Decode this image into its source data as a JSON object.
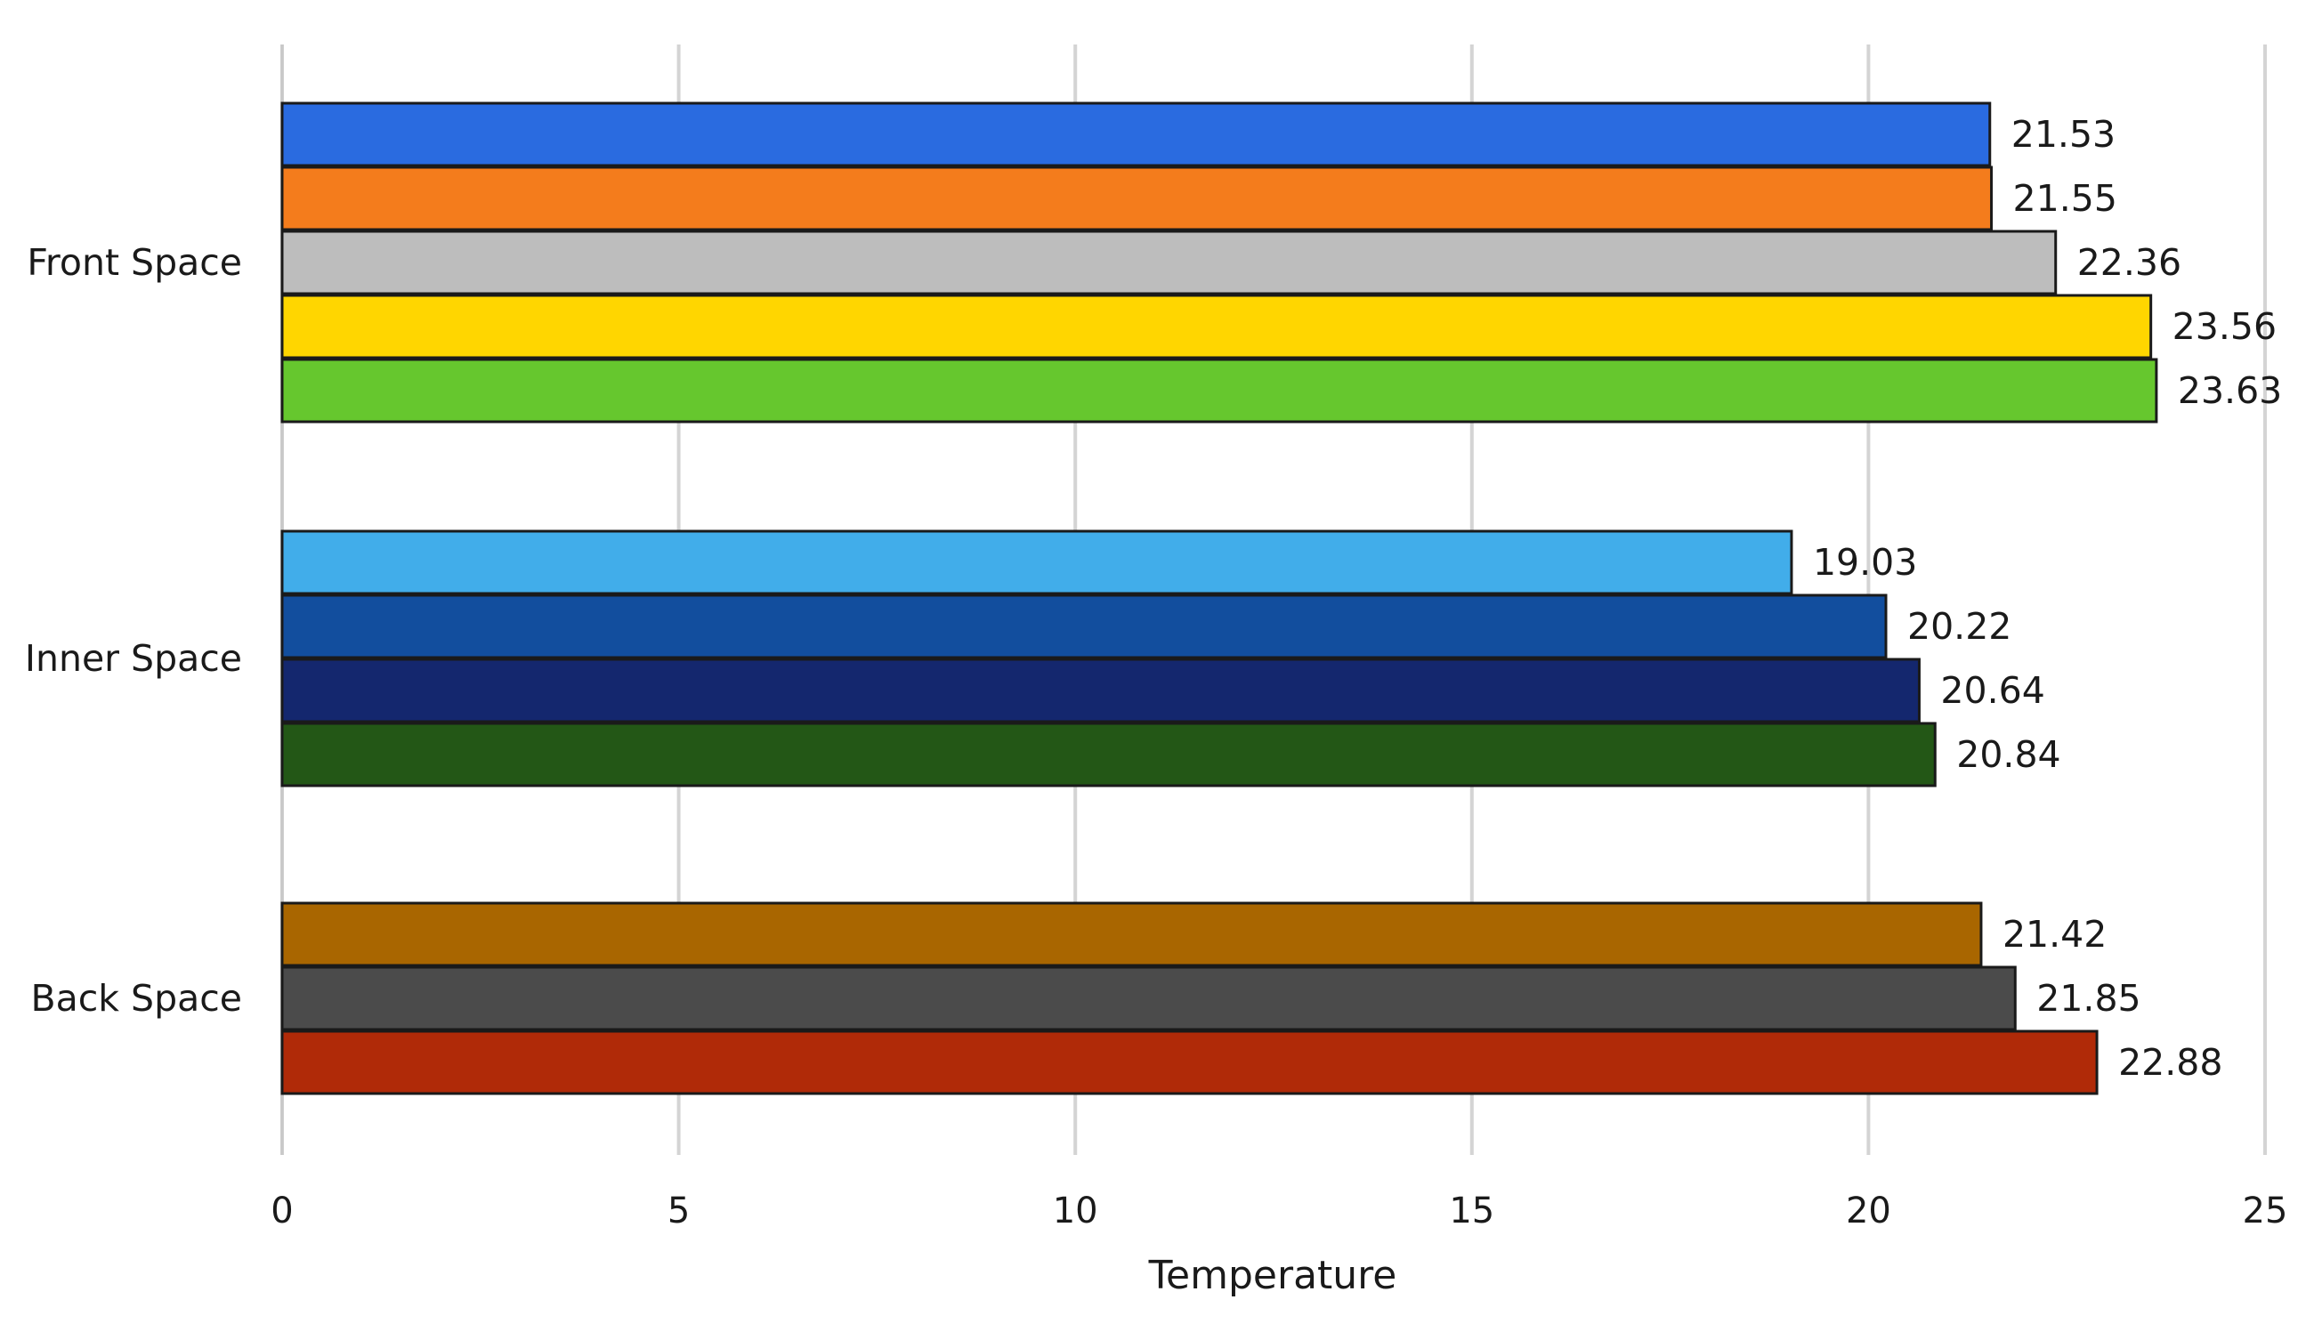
{
  "chart_data": {
    "type": "bar",
    "orientation": "horizontal",
    "title": "",
    "xlabel": "Temperature",
    "ylabel": "",
    "xlim": [
      0,
      25
    ],
    "xticks": [
      0,
      5,
      10,
      15,
      20,
      25
    ],
    "grid": true,
    "legend": "none",
    "groups": [
      {
        "category": "Front Space",
        "bars": [
          {
            "value": 21.53,
            "label": "21.53",
            "color": "#2A6BE0"
          },
          {
            "value": 21.55,
            "label": "21.55",
            "color": "#F47C1C"
          },
          {
            "value": 22.36,
            "label": "22.36",
            "color": "#BDBDBD"
          },
          {
            "value": 23.56,
            "label": "23.56",
            "color": "#FFD600"
          },
          {
            "value": 23.63,
            "label": "23.63",
            "color": "#66C72E"
          }
        ]
      },
      {
        "category": "Inner Space",
        "bars": [
          {
            "value": 19.03,
            "label": "19.03",
            "color": "#41ADEA"
          },
          {
            "value": 20.22,
            "label": "20.22",
            "color": "#124E9E"
          },
          {
            "value": 20.64,
            "label": "20.64",
            "color": "#14276E"
          },
          {
            "value": 20.84,
            "label": "20.84",
            "color": "#235716"
          }
        ]
      },
      {
        "category": "Back Space",
        "bars": [
          {
            "value": 21.42,
            "label": "21.42",
            "color": "#A96600"
          },
          {
            "value": 21.85,
            "label": "21.85",
            "color": "#4B4B4B"
          },
          {
            "value": 22.88,
            "label": "22.88",
            "color": "#B02A08"
          }
        ]
      }
    ]
  }
}
